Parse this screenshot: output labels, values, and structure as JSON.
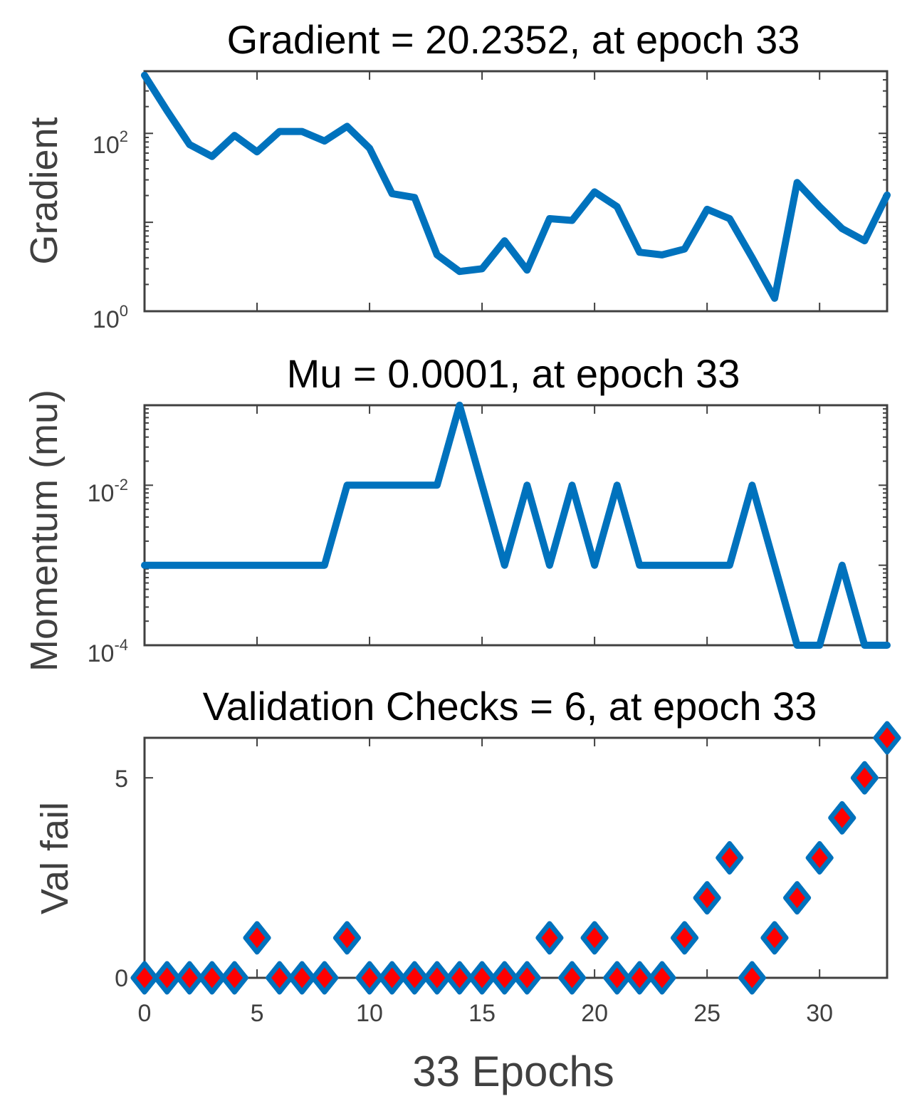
{
  "chart_data": [
    {
      "type": "line",
      "title": "Gradient = 20.2352, at epoch 33",
      "ylabel": "Gradient",
      "xlabel": "",
      "yscale": "log",
      "ylim": [
        1,
        500
      ],
      "xlim": [
        0,
        33
      ],
      "yticks": [
        {
          "base": "10",
          "exp": "0",
          "value": 1
        },
        {
          "base": "10",
          "exp": "2",
          "value": 100
        }
      ],
      "color": "#0072BD",
      "series": [
        {
          "name": "Gradient",
          "x": [
            0,
            1,
            2,
            3,
            4,
            5,
            6,
            7,
            8,
            9,
            10,
            11,
            12,
            13,
            14,
            15,
            16,
            17,
            18,
            19,
            20,
            21,
            22,
            23,
            24,
            25,
            26,
            27,
            28,
            29,
            30,
            31,
            32,
            33
          ],
          "values": [
            450,
            180,
            75,
            55,
            95,
            62,
            105,
            105,
            82,
            120,
            68,
            21,
            19,
            4.3,
            2.8,
            3,
            6.2,
            2.9,
            11,
            10.5,
            22,
            15,
            4.6,
            4.3,
            5,
            14,
            11,
            4,
            1.4,
            28,
            15,
            8.5,
            6.2,
            20.2352
          ]
        }
      ]
    },
    {
      "type": "line",
      "title": "Mu = 0.0001, at epoch 33",
      "ylabel": "Momentum (mu)",
      "xlabel": "",
      "yscale": "log",
      "ylim": [
        0.0001,
        0.1
      ],
      "xlim": [
        0,
        33
      ],
      "yticks": [
        {
          "base": "10",
          "exp": "-4",
          "value": 0.0001
        },
        {
          "base": "10",
          "exp": "-2",
          "value": 0.01
        }
      ],
      "color": "#0072BD",
      "series": [
        {
          "name": "Mu",
          "x": [
            0,
            1,
            2,
            3,
            4,
            5,
            6,
            7,
            8,
            9,
            10,
            11,
            12,
            13,
            14,
            15,
            16,
            17,
            18,
            19,
            20,
            21,
            22,
            23,
            24,
            25,
            26,
            27,
            28,
            29,
            30,
            31,
            32,
            33
          ],
          "values": [
            0.001,
            0.001,
            0.001,
            0.001,
            0.001,
            0.001,
            0.001,
            0.001,
            0.001,
            0.01,
            0.01,
            0.01,
            0.01,
            0.01,
            0.1,
            0.01,
            0.001,
            0.01,
            0.001,
            0.01,
            0.001,
            0.01,
            0.001,
            0.001,
            0.001,
            0.001,
            0.001,
            0.01,
            0.001,
            0.0001,
            0.0001,
            0.001,
            0.0001,
            0.0001
          ]
        }
      ]
    },
    {
      "type": "scatter",
      "title": "Validation Checks = 6, at epoch 33",
      "ylabel": "Val fail",
      "xlabel": "33 Epochs",
      "yscale": "linear",
      "ylim": [
        0,
        6
      ],
      "xlim": [
        0,
        33
      ],
      "yticks": [
        {
          "label": "0",
          "value": 0
        },
        {
          "label": "5",
          "value": 5
        }
      ],
      "xticks": [
        "0",
        "5",
        "10",
        "15",
        "20",
        "25",
        "30"
      ],
      "marker": "diamond",
      "marker_face": "#FF0000",
      "marker_edge": "#0072BD",
      "series": [
        {
          "name": "Val fail",
          "x": [
            0,
            1,
            2,
            3,
            4,
            5,
            6,
            7,
            8,
            9,
            10,
            11,
            12,
            13,
            14,
            15,
            16,
            17,
            18,
            19,
            20,
            21,
            22,
            23,
            24,
            25,
            26,
            27,
            28,
            29,
            30,
            31,
            32,
            33
          ],
          "values": [
            0,
            0,
            0,
            0,
            0,
            1,
            0,
            0,
            0,
            1,
            0,
            0,
            0,
            0,
            0,
            0,
            0,
            0,
            1,
            0,
            1,
            0,
            0,
            0,
            1,
            2,
            3,
            0,
            1,
            2,
            3,
            4,
            5,
            6
          ]
        }
      ]
    }
  ]
}
